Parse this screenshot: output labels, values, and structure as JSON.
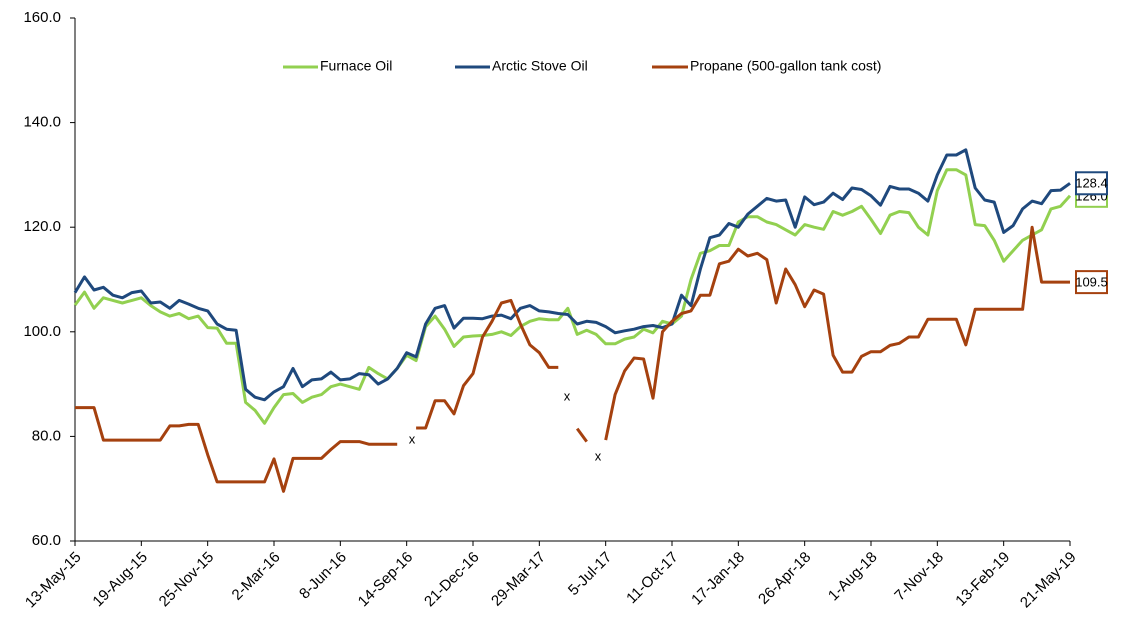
{
  "chart_data": {
    "type": "line",
    "categories": [
      "13-May-15",
      null,
      null,
      null,
      null,
      null,
      null,
      "19-Aug-15",
      null,
      null,
      null,
      null,
      null,
      null,
      "25-Nov-15",
      null,
      null,
      null,
      null,
      null,
      null,
      "2-Mar-16",
      null,
      null,
      null,
      null,
      null,
      null,
      "8-Jun-16",
      null,
      null,
      null,
      null,
      null,
      null,
      "14-Sep-16",
      null,
      null,
      null,
      null,
      null,
      null,
      "21-Dec-16",
      null,
      null,
      null,
      null,
      null,
      null,
      "29-Mar-17",
      null,
      null,
      null,
      null,
      null,
      null,
      "5-Jul-17",
      null,
      null,
      null,
      null,
      null,
      null,
      "11-Oct-17",
      null,
      null,
      null,
      null,
      null,
      null,
      "17-Jan-18",
      null,
      null,
      null,
      null,
      null,
      null,
      "26-Apr-18",
      null,
      null,
      null,
      null,
      null,
      null,
      "1-Aug-18",
      null,
      null,
      null,
      null,
      null,
      null,
      "7-Nov-18",
      null,
      null,
      null,
      null,
      null,
      null,
      "13-Feb-19",
      null,
      null,
      null,
      null,
      null,
      null,
      "21-May-19"
    ],
    "series": [
      {
        "name": "Furnace Oil",
        "color": "#92d050",
        "values": [
          105.1,
          107.6,
          104.5,
          106.5,
          106,
          105.5,
          106,
          106.5,
          105,
          103.8,
          103,
          103.5,
          102.5,
          103,
          100.8,
          100.7,
          97.8,
          97.8,
          86.5,
          85,
          82.5,
          85.5,
          88,
          88.2,
          86.5,
          87.5,
          88,
          89.5,
          90,
          89.5,
          89,
          93.2,
          92,
          91,
          93,
          95.5,
          94.5,
          101,
          103,
          100.5,
          97.2,
          99,
          99.2,
          99.3,
          99.5,
          100,
          99.3,
          101,
          102,
          102.5,
          102.3,
          102.3,
          104.5,
          99.5,
          100.3,
          99.5,
          97.7,
          97.7,
          98.6,
          99,
          100.5,
          99.8,
          102,
          101.5,
          103,
          110,
          115,
          115.5,
          116.5,
          116.5,
          121,
          122,
          122,
          121,
          120.5,
          119.5,
          118.5,
          120.5,
          120,
          119.6,
          123,
          122.3,
          123,
          124,
          121.5,
          118.8,
          122.3,
          123,
          122.8,
          120,
          118.5,
          127,
          131,
          131,
          130,
          120.5,
          120.3,
          117.5,
          113.5,
          115.5,
          117.5,
          118.5,
          119.5,
          123.5,
          124,
          126.0
        ],
        "value_labels": [
          null,
          null,
          null,
          null,
          null,
          null,
          null,
          null,
          null,
          null,
          null,
          null,
          null,
          null,
          null,
          null,
          null,
          null,
          null,
          null,
          null,
          null,
          null,
          null,
          null,
          null,
          null,
          null,
          null,
          null,
          null,
          null,
          null,
          null,
          null,
          null,
          null,
          null,
          null,
          null,
          null,
          null,
          null,
          null,
          null,
          null,
          null,
          null,
          null,
          null,
          null,
          null,
          null,
          null,
          null,
          null,
          null,
          null,
          null,
          null,
          null,
          null,
          null,
          null,
          null,
          null,
          null,
          null,
          null,
          null,
          null,
          null,
          null,
          null,
          null,
          null,
          null,
          null,
          null,
          null,
          null,
          null,
          null,
          null,
          null,
          null,
          null,
          null,
          null,
          null,
          null,
          null,
          null,
          null,
          null,
          null,
          null,
          null,
          null,
          null,
          null,
          null,
          null,
          null,
          null,
          "126.0"
        ]
      },
      {
        "name": "Arctic Stove Oil",
        "color": "#1f497d",
        "values": [
          107.5,
          110.5,
          108,
          108.5,
          107,
          106.5,
          107.5,
          107.8,
          105.5,
          105.7,
          104.5,
          106,
          105.3,
          104.5,
          104,
          101.5,
          100.5,
          100.3,
          89,
          87.5,
          87,
          88.5,
          89.5,
          93,
          89.5,
          90.8,
          91,
          92.3,
          90.8,
          91,
          92,
          91.8,
          90,
          91,
          93,
          96,
          95.2,
          101.5,
          104.5,
          105,
          100.7,
          102.6,
          102.6,
          102.5,
          103,
          103.2,
          102.5,
          104.5,
          105,
          104,
          103.8,
          103.5,
          103.3,
          101.5,
          102,
          101.8,
          101,
          99.8,
          100.2,
          100.5,
          101,
          101.2,
          100.8,
          101.5,
          107,
          105,
          112,
          118,
          118.5,
          120.7,
          120,
          122.5,
          124,
          125.5,
          125,
          125.2,
          120,
          125.8,
          124.3,
          124.8,
          126.5,
          125.3,
          127.5,
          127.2,
          126,
          124.2,
          127.8,
          127.3,
          127.3,
          126.5,
          125,
          130,
          133.8,
          133.8,
          134.8,
          127.5,
          125.2,
          124.8,
          119,
          120.3,
          123.5,
          125,
          124.5,
          127,
          127.1,
          128.4
        ],
        "value_labels": [
          null,
          null,
          null,
          null,
          null,
          null,
          null,
          null,
          null,
          null,
          null,
          null,
          null,
          null,
          null,
          null,
          null,
          null,
          null,
          null,
          null,
          null,
          null,
          null,
          null,
          null,
          null,
          null,
          null,
          null,
          null,
          null,
          null,
          null,
          null,
          null,
          null,
          null,
          null,
          null,
          null,
          null,
          null,
          null,
          null,
          null,
          null,
          null,
          null,
          null,
          null,
          null,
          null,
          null,
          null,
          null,
          null,
          null,
          null,
          null,
          null,
          null,
          null,
          null,
          null,
          null,
          null,
          null,
          null,
          null,
          null,
          null,
          null,
          null,
          null,
          null,
          null,
          null,
          null,
          null,
          null,
          null,
          null,
          null,
          null,
          null,
          null,
          null,
          null,
          null,
          null,
          null,
          null,
          null,
          null,
          null,
          null,
          null,
          null,
          null,
          null,
          null,
          null,
          null,
          null,
          "128.4"
        ]
      },
      {
        "name": "Propane (500-gallon tank cost)",
        "color": "#a5410f",
        "values": [
          85.5,
          85.5,
          85.5,
          79.3,
          79.3,
          79.3,
          79.3,
          79.3,
          79.3,
          79.3,
          82,
          82,
          82.3,
          82.3,
          76.5,
          71.3,
          71.3,
          71.3,
          71.3,
          71.3,
          71.3,
          75.7,
          69.5,
          75.8,
          75.8,
          75.8,
          75.8,
          77.5,
          79,
          79,
          79,
          78.5,
          78.5,
          78.5,
          78.5,
          null,
          81.6,
          81.6,
          86.8,
          86.8,
          84.3,
          89.7,
          92,
          99,
          102,
          105.5,
          106,
          101.5,
          97.5,
          96,
          93.2,
          93.2,
          null,
          81.5,
          79,
          null,
          79.3,
          88,
          92.5,
          95,
          94.8,
          87.3,
          100,
          102,
          103.5,
          104,
          107,
          107,
          113,
          113.5,
          115.8,
          114.5,
          115,
          113.8,
          105.5,
          112,
          109,
          104.8,
          108,
          107.2,
          95.5,
          92.3,
          92.3,
          95.3,
          96.2,
          96.2,
          97.4,
          97.8,
          99,
          99,
          102.4,
          102.4,
          102.4,
          102.4,
          97.5,
          104.3,
          104.3,
          104.3,
          104.3,
          104.3,
          104.3,
          120,
          109.5,
          109.5,
          109.5,
          109.5
        ],
        "value_labels": [
          null,
          null,
          null,
          null,
          null,
          null,
          null,
          null,
          null,
          null,
          null,
          null,
          null,
          null,
          null,
          null,
          null,
          null,
          null,
          null,
          null,
          null,
          null,
          null,
          null,
          null,
          null,
          null,
          null,
          null,
          null,
          null,
          null,
          null,
          null,
          null,
          null,
          null,
          null,
          null,
          null,
          null,
          null,
          null,
          null,
          null,
          null,
          null,
          null,
          null,
          null,
          null,
          null,
          null,
          null,
          null,
          null,
          null,
          null,
          null,
          null,
          null,
          null,
          null,
          null,
          null,
          null,
          null,
          null,
          null,
          null,
          null,
          null,
          null,
          null,
          null,
          null,
          null,
          null,
          null,
          null,
          null,
          null,
          null,
          null,
          null,
          null,
          null,
          null,
          null,
          null,
          null,
          null,
          null,
          null,
          null,
          null,
          null,
          null,
          null,
          null,
          null,
          null,
          null,
          null,
          "109.5"
        ]
      }
    ],
    "ylim": [
      60,
      160
    ],
    "yticks": [
      {
        "value": 60,
        "label": "60.0"
      },
      {
        "value": 80,
        "label": "80.0"
      },
      {
        "value": 100,
        "label": "100.0"
      },
      {
        "value": 120,
        "label": "120.0"
      },
      {
        "value": 140,
        "label": "140.0"
      },
      {
        "value": 160,
        "label": "160.0"
      }
    ],
    "grid": false,
    "legend": "top",
    "annotations": [
      "x",
      "x",
      "x"
    ]
  }
}
